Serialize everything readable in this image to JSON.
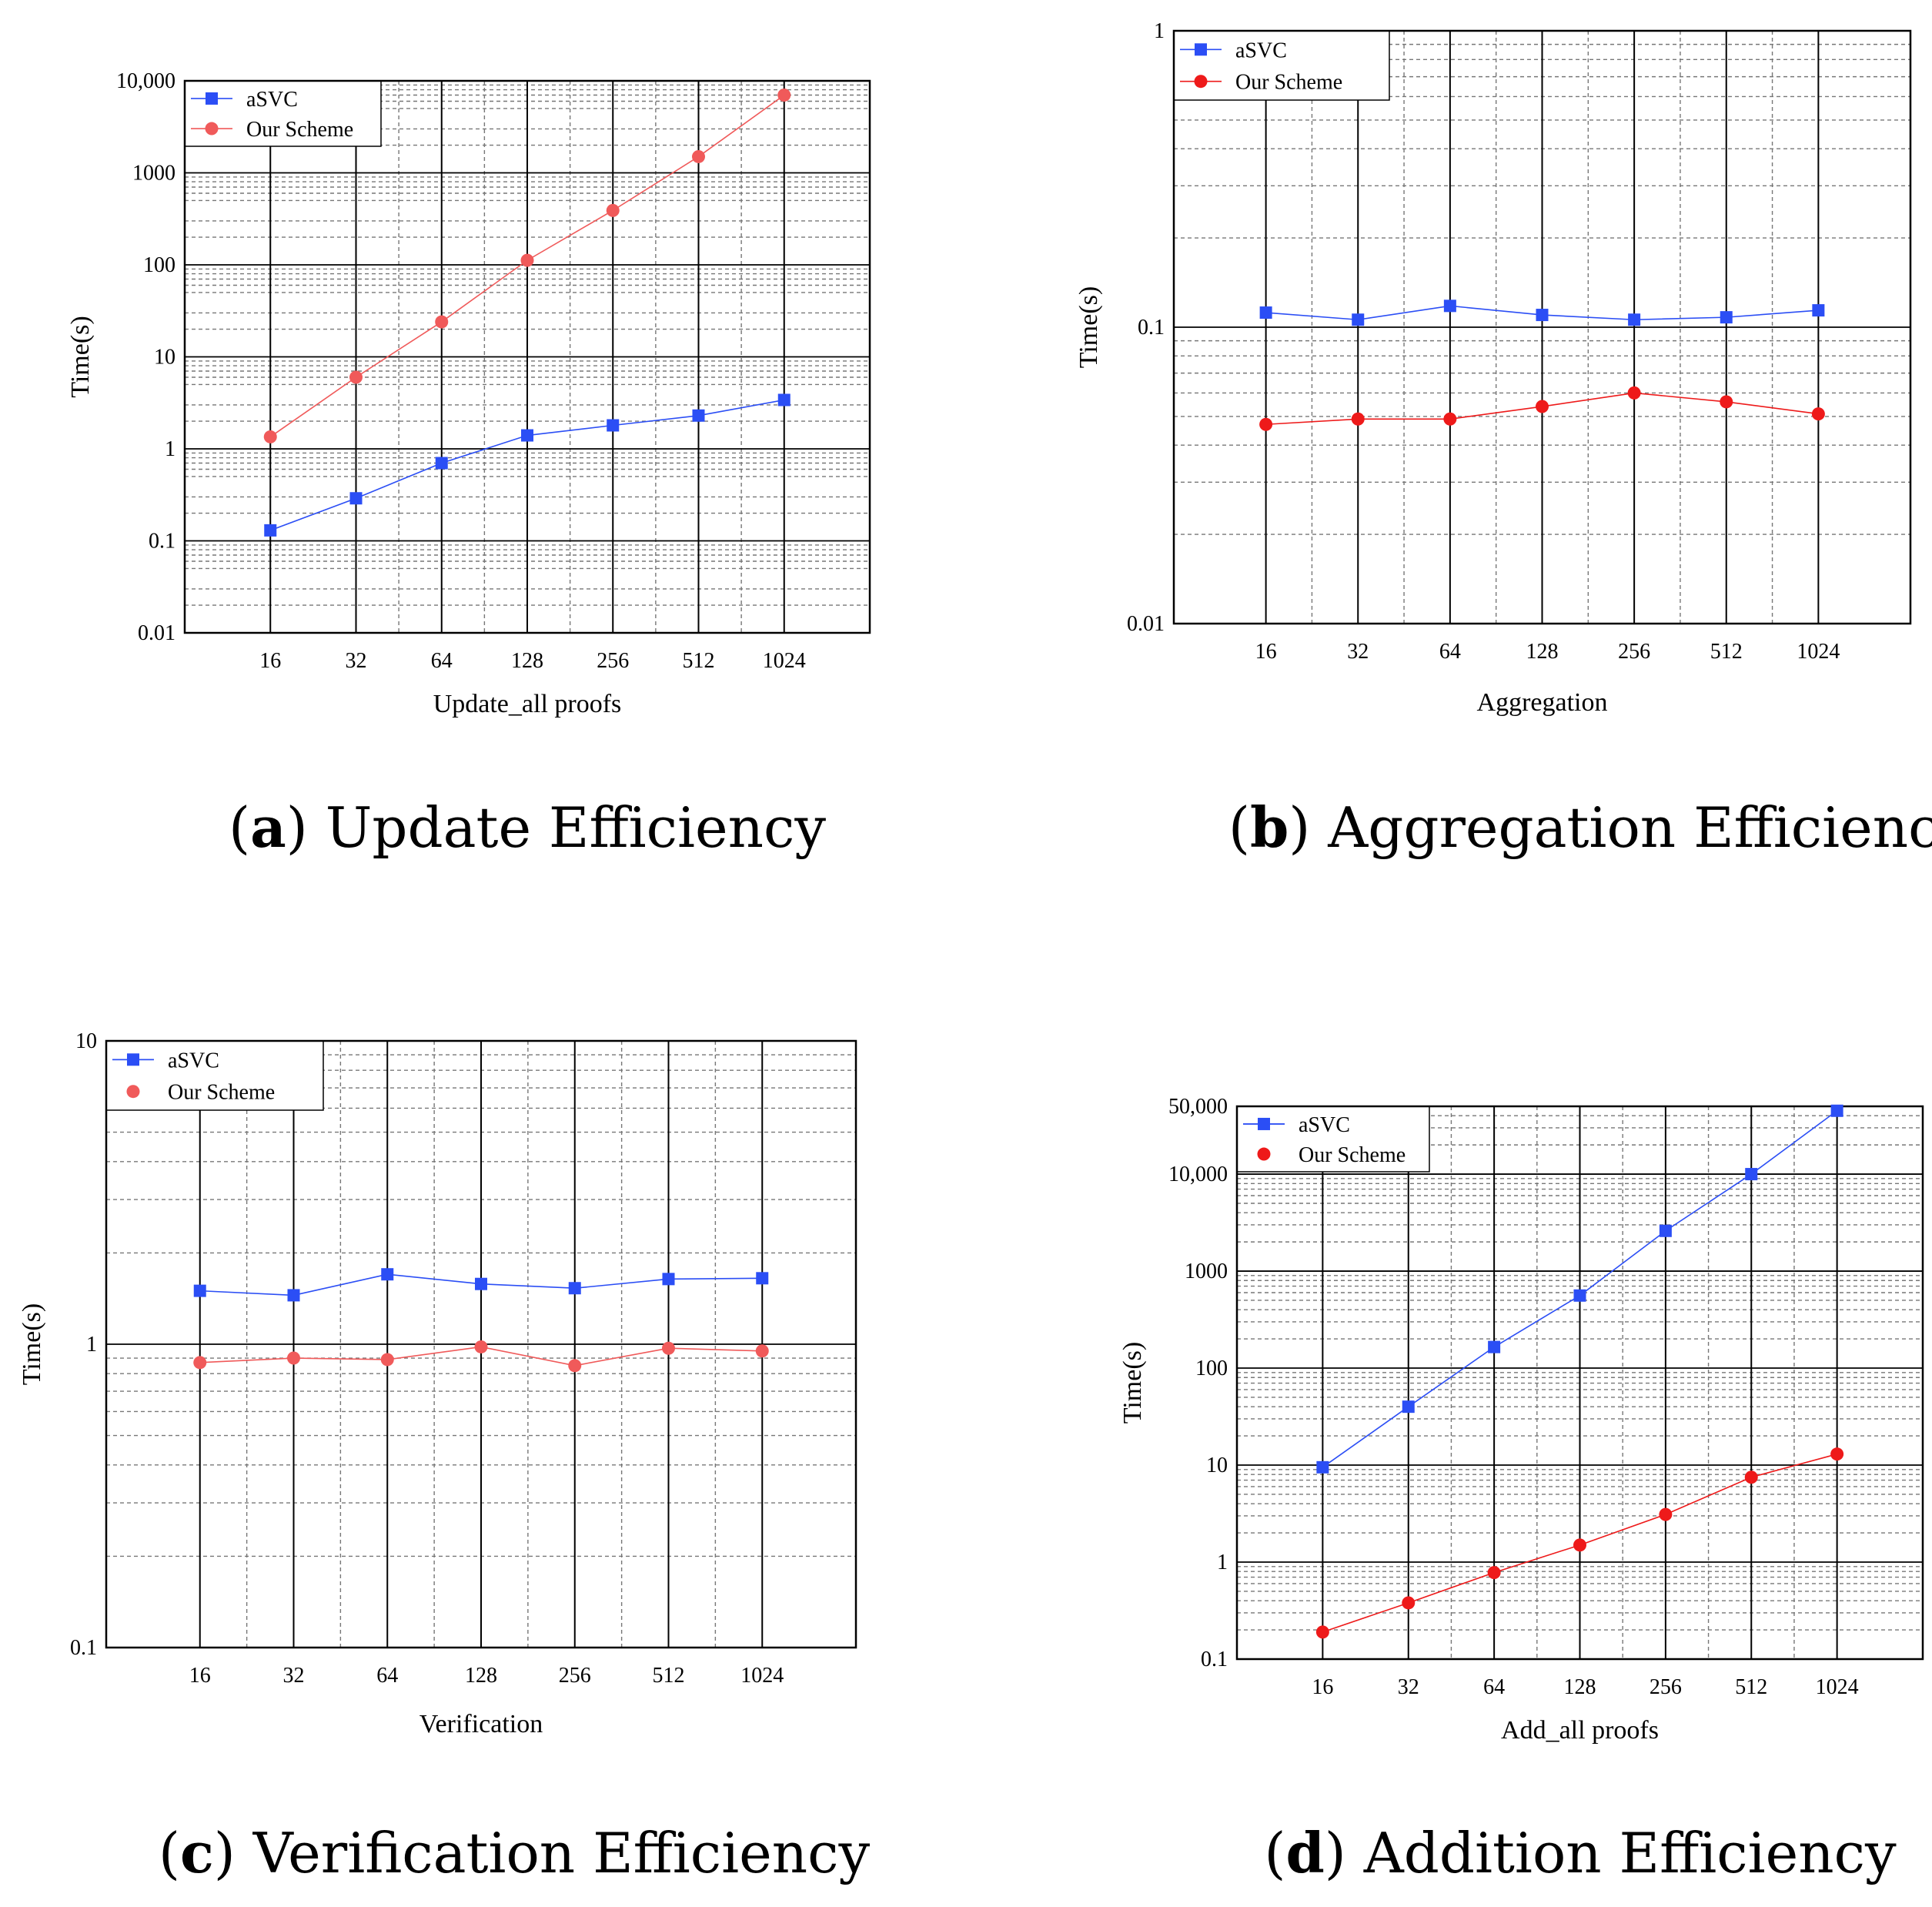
{
  "colors": {
    "asvc": "#2b4ef5",
    "scheme_a": "#f05a5a",
    "scheme_b": "#ee1a1a"
  },
  "chart_data": [
    {
      "id": "a",
      "type": "line",
      "yscale": "log",
      "categories": [
        "16",
        "32",
        "64",
        "128",
        "256",
        "512",
        "1024"
      ],
      "series": [
        {
          "name": "aSVC",
          "marker": "square",
          "values": [
            0.13,
            0.29,
            0.7,
            1.4,
            1.8,
            2.3,
            3.4
          ]
        },
        {
          "name": "Our Scheme",
          "marker": "circle",
          "values": [
            1.35,
            6,
            24,
            112,
            390,
            1500,
            7000
          ]
        }
      ],
      "ylim": [
        0.01,
        10000
      ],
      "yticks": [
        "0.01",
        "0.1",
        "1",
        "10",
        "100",
        "1000",
        "10,000"
      ],
      "xlabel": "Update_all proofs",
      "ylabel": "Time(s)",
      "legend_position": "top-left",
      "caption": {
        "letter": "a",
        "text": "Update Efficiency"
      }
    },
    {
      "id": "b",
      "type": "line",
      "yscale": "log",
      "categories": [
        "16",
        "32",
        "64",
        "128",
        "256",
        "512",
        "1024"
      ],
      "series": [
        {
          "name": "aSVC",
          "marker": "square",
          "values": [
            0.112,
            0.106,
            0.118,
            0.11,
            0.106,
            0.108,
            0.114
          ]
        },
        {
          "name": "Our Scheme",
          "marker": "circle",
          "values": [
            0.047,
            0.049,
            0.049,
            0.054,
            0.06,
            0.056,
            0.051
          ]
        }
      ],
      "ylim": [
        0.01,
        1
      ],
      "yticks": [
        "0.01",
        "0.1",
        "1"
      ],
      "xlabel": "Aggregation",
      "ylabel": "Time(s)",
      "legend_position": "top-left",
      "caption": {
        "letter": "b",
        "text": "Aggregation Efficiency"
      }
    },
    {
      "id": "c",
      "type": "line",
      "yscale": "log",
      "categories": [
        "16",
        "32",
        "64",
        "128",
        "256",
        "512",
        "1024"
      ],
      "series": [
        {
          "name": "aSVC",
          "marker": "square",
          "values": [
            1.5,
            1.45,
            1.7,
            1.58,
            1.53,
            1.64,
            1.65
          ]
        },
        {
          "name": "Our Scheme",
          "marker": "circle",
          "values": [
            0.87,
            0.9,
            0.89,
            0.98,
            0.85,
            0.97,
            0.95
          ]
        }
      ],
      "ylim": [
        0.1,
        10
      ],
      "yticks": [
        "0.1",
        "1",
        "10"
      ],
      "xlabel": "Verification",
      "ylabel": "Time(s)",
      "legend_position": "top-left",
      "caption": {
        "letter": "c",
        "text": "Verification Efficiency"
      }
    },
    {
      "id": "d",
      "type": "line",
      "yscale": "log",
      "categories": [
        "16",
        "32",
        "64",
        "128",
        "256",
        "512",
        "1024"
      ],
      "series": [
        {
          "name": "aSVC",
          "marker": "square",
          "values": [
            9.5,
            40,
            165,
            560,
            2600,
            10000,
            45000
          ]
        },
        {
          "name": "Our Scheme",
          "marker": "circle",
          "values": [
            0.19,
            0.38,
            0.78,
            1.5,
            3.1,
            7.5,
            13
          ]
        }
      ],
      "ylim": [
        0.1,
        50000
      ],
      "yticks": [
        "0.1",
        "1",
        "10",
        "100",
        "1000",
        "10,000",
        "50,000"
      ],
      "xlabel": "Add_all proofs",
      "ylabel": "Time(s)",
      "legend_position": "top-left",
      "caption": {
        "letter": "d",
        "text": "Addition Efficiency"
      }
    }
  ]
}
